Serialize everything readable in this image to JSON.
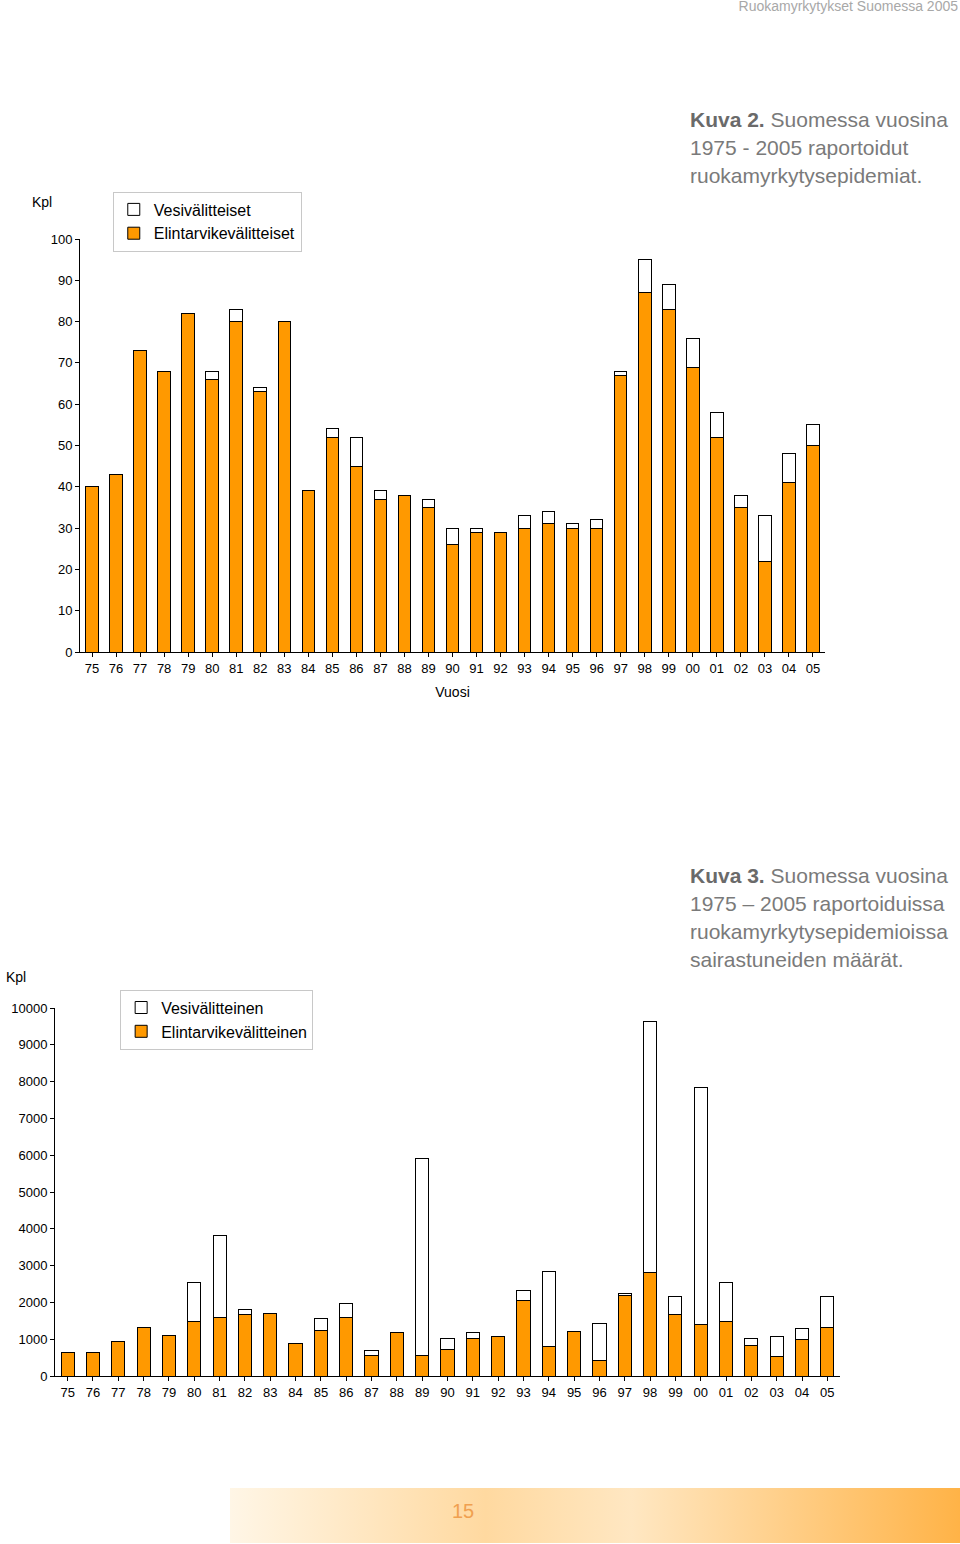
{
  "page": {
    "header": "Ruokamyrkytykset Suomessa 2005",
    "page_number": "15"
  },
  "chart_data": [
    {
      "type": "bar",
      "title": "Kuva 2.",
      "subtitle": "Suomessa vuosina 1975 - 2005 raportoidut ruokamyrkytysepidemiat.",
      "xlabel": "Vuosi",
      "ylabel": "Kpl",
      "categories": [
        "75",
        "76",
        "77",
        "78",
        "79",
        "80",
        "81",
        "82",
        "83",
        "84",
        "85",
        "86",
        "87",
        "88",
        "89",
        "90",
        "91",
        "92",
        "93",
        "94",
        "95",
        "96",
        "97",
        "98",
        "99",
        "00",
        "01",
        "02",
        "03",
        "04",
        "05"
      ],
      "series": [
        {
          "name": "Elintarvikevälitteiset",
          "color": "#ff9900",
          "values": [
            40,
            43,
            73,
            68,
            82,
            66,
            80,
            63,
            80,
            39,
            52,
            45,
            37,
            38,
            35,
            26,
            29,
            29,
            30,
            31,
            30,
            30,
            67,
            87,
            83,
            69,
            52,
            35,
            22,
            41,
            50
          ]
        },
        {
          "name": "Vesivälitteiset",
          "color": "#ffffff",
          "values": [
            0,
            0,
            0,
            0,
            0,
            2,
            3,
            1,
            0,
            0,
            2,
            7,
            2,
            0,
            2,
            4,
            1,
            0,
            3,
            3,
            1,
            2,
            1,
            8,
            6,
            7,
            6,
            3,
            11,
            7,
            5
          ]
        }
      ],
      "ylim": [
        0,
        100
      ],
      "yticks": [
        0,
        10,
        20,
        30,
        40,
        50,
        60,
        70,
        80,
        90,
        100
      ],
      "stacked": true,
      "grid": false,
      "legend": "top left"
    },
    {
      "type": "bar",
      "title": "Kuva 3.",
      "subtitle": "Suomessa vuosina 1975 – 2005 raportoiduissa ruokamyrkytysepidemioissa sairastuneiden määrät.",
      "ylabel": "Kpl",
      "categories": [
        "75",
        "76",
        "77",
        "78",
        "79",
        "80",
        "81",
        "82",
        "83",
        "84",
        "85",
        "86",
        "87",
        "88",
        "89",
        "90",
        "91",
        "92",
        "93",
        "94",
        "95",
        "96",
        "97",
        "98",
        "99",
        "00",
        "01",
        "02",
        "03",
        "04",
        "05"
      ],
      "series": [
        {
          "name": "Elintarvikevälitteinen",
          "color": "#ff9900",
          "values": [
            630,
            650,
            950,
            1330,
            1110,
            1490,
            1600,
            1680,
            1710,
            870,
            1250,
            1600,
            570,
            1170,
            570,
            730,
            1030,
            1060,
            2040,
            790,
            1220,
            430,
            2200,
            2800,
            1660,
            1410,
            1470,
            820,
            520,
            980,
            1330
          ]
        },
        {
          "name": "Vesivälitteinen",
          "color": "#ffffff",
          "values": [
            0,
            0,
            0,
            0,
            0,
            1060,
            2230,
            140,
            0,
            0,
            300,
            360,
            110,
            0,
            5350,
            280,
            140,
            0,
            270,
            2060,
            0,
            1010,
            30,
            6820,
            490,
            6440,
            1060,
            210,
            540,
            300,
            820
          ]
        }
      ],
      "ylim": [
        0,
        10000
      ],
      "yticks": [
        0,
        1000,
        2000,
        3000,
        4000,
        5000,
        6000,
        7000,
        8000,
        9000,
        10000
      ],
      "stacked": true,
      "grid": false,
      "legend": "top left"
    }
  ]
}
